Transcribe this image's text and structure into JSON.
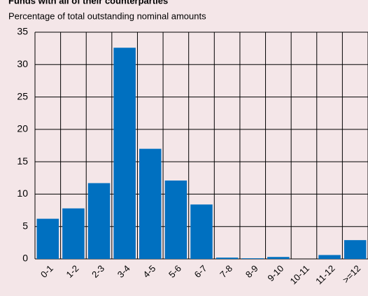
{
  "chart_data": {
    "type": "bar",
    "title": "Funds with all of their counterparties",
    "subtitle": "Percentage of total outstanding nominal amounts",
    "categories": [
      "0-1",
      "1-2",
      "2-3",
      "3-4",
      "4-5",
      "5-6",
      "6-7",
      "7-8",
      "8-9",
      "9-10",
      "10-11",
      "11-12",
      ">=12"
    ],
    "values": [
      6.2,
      7.8,
      11.7,
      32.6,
      17.0,
      12.1,
      8.4,
      0.2,
      0.1,
      0.3,
      0,
      0.6,
      2.9
    ],
    "color": "#0070c0",
    "ylim": [
      0,
      35
    ],
    "yticks": [
      0,
      5,
      10,
      15,
      20,
      25,
      30,
      35
    ],
    "grid": true
  }
}
